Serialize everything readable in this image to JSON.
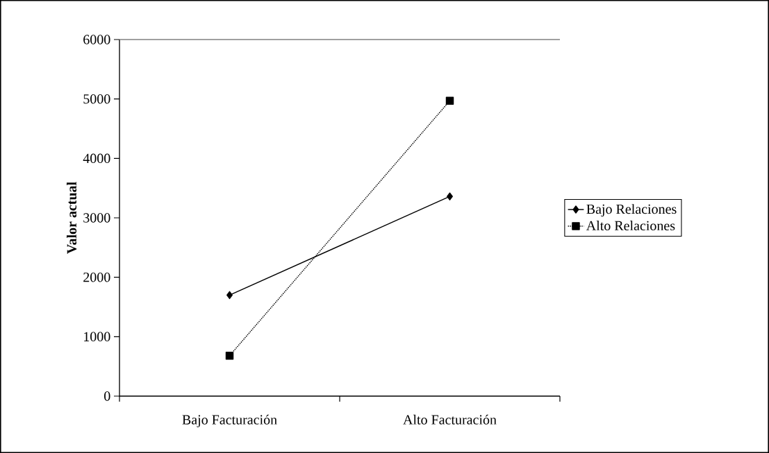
{
  "chart_data": {
    "type": "line",
    "ylabel": "Valor actual",
    "categories": [
      "Bajo Facturación",
      "Alto Facturación"
    ],
    "series": [
      {
        "name": "Bajo Relaciones",
        "color": "#000000",
        "marker": "diamond",
        "line_style": "solid",
        "values": [
          1700,
          3360
        ]
      },
      {
        "name": "Alto Relaciones",
        "color": "#000000",
        "marker": "square",
        "line_style": "dotted",
        "values": [
          680,
          4970
        ]
      }
    ],
    "ylim": [
      0,
      6000
    ],
    "yticks": [
      0,
      1000,
      2000,
      3000,
      4000,
      5000,
      6000
    ],
    "grid": false,
    "legend": "right"
  }
}
